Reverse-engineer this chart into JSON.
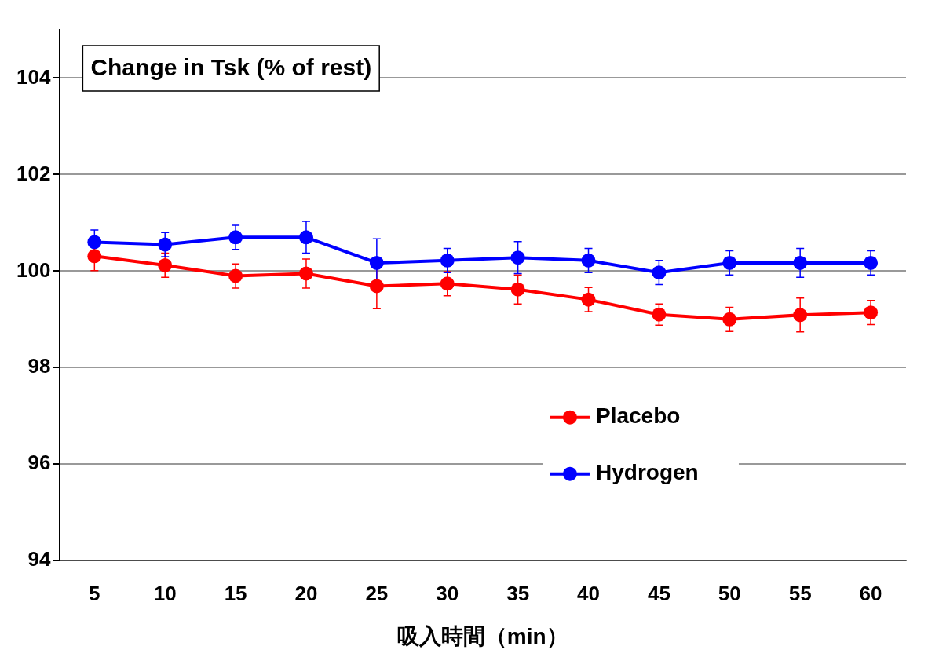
{
  "chart_data": {
    "type": "line",
    "title": "Change in Tsk (% of rest)",
    "xlabel": "吸入時間（min）",
    "categories": [
      "5",
      "10",
      "15",
      "20",
      "25",
      "30",
      "35",
      "40",
      "45",
      "50",
      "55",
      "60"
    ],
    "series": [
      {
        "name": "Placebo",
        "color": "#ff0000",
        "values": [
          100.31,
          100.12,
          99.9,
          99.95,
          99.69,
          99.74,
          99.62,
          99.41,
          99.1,
          99.0,
          99.09,
          99.14
        ],
        "errors": [
          0.3,
          0.25,
          0.25,
          0.3,
          0.47,
          0.25,
          0.3,
          0.25,
          0.22,
          0.25,
          0.35,
          0.25
        ]
      },
      {
        "name": "Hydrogen",
        "color": "#0000ff",
        "values": [
          100.6,
          100.55,
          100.7,
          100.7,
          100.17,
          100.22,
          100.28,
          100.22,
          99.97,
          100.17,
          100.17,
          100.17
        ],
        "errors": [
          0.25,
          0.25,
          0.25,
          0.33,
          0.5,
          0.25,
          0.33,
          0.25,
          0.25,
          0.25,
          0.3,
          0.25
        ]
      }
    ],
    "ylim": [
      94,
      105
    ],
    "yticks": [
      94,
      96,
      98,
      100,
      102,
      104
    ],
    "grid": "y",
    "legend": "right",
    "marker": "circle",
    "line_style": "solid"
  }
}
